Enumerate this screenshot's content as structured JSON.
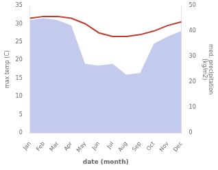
{
  "chart_data": {
    "type": "line",
    "xlabel": "date (month)",
    "ylabel": "max temp (C)",
    "y2label": "med. precipitation\n(kg/m2)",
    "categories": [
      "Jan",
      "Feb",
      "Mar",
      "Apr",
      "May",
      "Jun",
      "Jul",
      "Aug",
      "Sep",
      "Oct",
      "Nov",
      "Dec"
    ],
    "series": [
      {
        "type": "area",
        "color": "#b0b8e8",
        "values": [
          31.0,
          31.5,
          31.0,
          29.5,
          19.0,
          18.5,
          19.0,
          16.0,
          16.5,
          24.5,
          26.5,
          28.0
        ]
      },
      {
        "type": "line",
        "color": "#c0392b",
        "values": [
          31.5,
          32.0,
          32.0,
          31.5,
          30.0,
          27.5,
          26.5,
          26.5,
          27.0,
          28.0,
          29.5,
          30.5
        ]
      }
    ],
    "ylim": [
      0,
      35
    ],
    "yticks": [
      0,
      5,
      10,
      15,
      20,
      25,
      30,
      35
    ],
    "y2lim": [
      0,
      50
    ],
    "y2ticks": [
      0,
      10,
      20,
      30,
      40,
      50
    ],
    "grid": false
  }
}
